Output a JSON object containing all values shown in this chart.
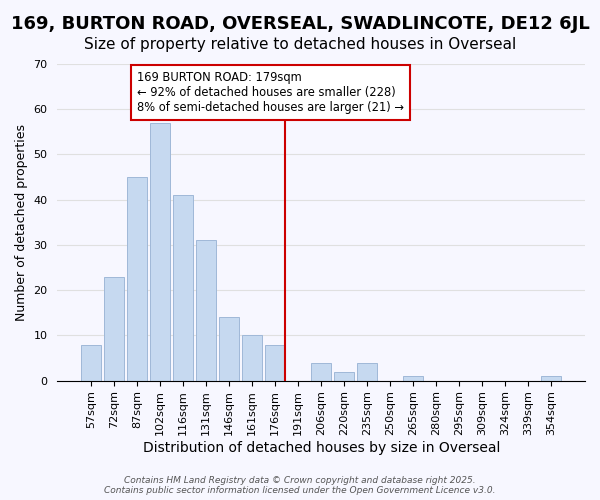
{
  "title": "169, BURTON ROAD, OVERSEAL, SWADLINCOTE, DE12 6JL",
  "subtitle": "Size of property relative to detached houses in Overseal",
  "xlabel": "Distribution of detached houses by size in Overseal",
  "ylabel": "Number of detached properties",
  "bar_labels": [
    "57sqm",
    "72sqm",
    "87sqm",
    "102sqm",
    "116sqm",
    "131sqm",
    "146sqm",
    "161sqm",
    "176sqm",
    "191sqm",
    "206sqm",
    "220sqm",
    "235sqm",
    "250sqm",
    "265sqm",
    "280sqm",
    "295sqm",
    "309sqm",
    "324sqm",
    "339sqm",
    "354sqm"
  ],
  "bar_heights": [
    8,
    23,
    45,
    57,
    41,
    31,
    14,
    10,
    8,
    0,
    4,
    2,
    4,
    0,
    1,
    0,
    0,
    0,
    0,
    0,
    1
  ],
  "bar_color": "#c6d9f0",
  "bar_edge_color": "#a0b8d8",
  "vline_idx": 8,
  "vline_color": "#cc0000",
  "annotation_line1": "169 BURTON ROAD: 179sqm",
  "annotation_line2": "← 92% of detached houses are smaller (228)",
  "annotation_line3": "8% of semi-detached houses are larger (21) →",
  "annotation_box_color": "white",
  "annotation_box_edge": "#cc0000",
  "ylim": [
    0,
    70
  ],
  "yticks": [
    0,
    10,
    20,
    30,
    40,
    50,
    60,
    70
  ],
  "grid_color": "#e0e0e0",
  "background_color": "#f7f7ff",
  "footer_text": "Contains HM Land Registry data © Crown copyright and database right 2025.\nContains public sector information licensed under the Open Government Licence v3.0.",
  "title_fontsize": 13,
  "subtitle_fontsize": 11,
  "xlabel_fontsize": 10,
  "ylabel_fontsize": 9,
  "tick_fontsize": 8
}
